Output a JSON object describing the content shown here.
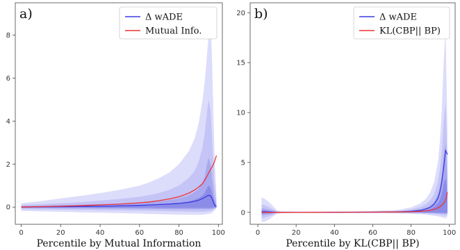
{
  "chart_data": [
    {
      "type": "area",
      "panel_label": "a)",
      "xlabel": "Percentile by Mutual Information",
      "ylabel": "",
      "xlim": [
        -3,
        102
      ],
      "ylim": [
        -0.8,
        9.5
      ],
      "xticks": [
        "0",
        "20",
        "40",
        "60",
        "80",
        "100"
      ],
      "yticks": [
        "0",
        "2",
        "4",
        "6",
        "8"
      ],
      "legend_position": "top-right",
      "grid": false,
      "colors": {
        "mean_line": "#3a3ae0",
        "info_line": "#ee3333",
        "band_outer": "#dcdcfb",
        "band_mid": "#c4c4f6",
        "band_inner": "#a9a9f0",
        "band_core": "#8c8ce8"
      },
      "x": [
        0,
        10,
        20,
        30,
        40,
        50,
        60,
        65,
        70,
        75,
        80,
        85,
        88,
        90,
        92,
        93,
        94,
        95,
        96,
        97,
        98,
        99
      ],
      "series": [
        {
          "name": "Δ wADE",
          "kind": "line",
          "values": [
            0.0,
            0.01,
            0.02,
            0.03,
            0.04,
            0.06,
            0.08,
            0.1,
            0.12,
            0.14,
            0.17,
            0.22,
            0.27,
            0.32,
            0.4,
            0.45,
            0.5,
            0.55,
            0.52,
            0.35,
            0.1,
            0.02
          ]
        },
        {
          "name": "Mutual Info.",
          "kind": "line",
          "values": [
            0.0,
            0.02,
            0.04,
            0.07,
            0.1,
            0.14,
            0.2,
            0.24,
            0.3,
            0.38,
            0.48,
            0.65,
            0.8,
            0.93,
            1.1,
            1.25,
            1.4,
            1.58,
            1.75,
            1.9,
            2.1,
            2.4
          ]
        },
        {
          "name": "band-outer",
          "kind": "band",
          "upper": [
            0.18,
            0.28,
            0.4,
            0.52,
            0.65,
            0.8,
            1.0,
            1.15,
            1.35,
            1.6,
            2.0,
            2.6,
            3.2,
            3.9,
            5.0,
            5.8,
            6.8,
            8.0,
            9.3,
            6.0,
            2.5,
            0.5
          ],
          "lower": [
            -0.18,
            -0.2,
            -0.22,
            -0.24,
            -0.26,
            -0.28,
            -0.3,
            -0.32,
            -0.33,
            -0.34,
            -0.35,
            -0.36,
            -0.36,
            -0.36,
            -0.35,
            -0.34,
            -0.33,
            -0.32,
            -0.3,
            -0.25,
            -0.15,
            -0.05
          ]
        },
        {
          "name": "band-mid",
          "kind": "band",
          "upper": [
            0.1,
            0.14,
            0.18,
            0.23,
            0.3,
            0.38,
            0.48,
            0.56,
            0.66,
            0.8,
            1.0,
            1.35,
            1.7,
            2.1,
            2.8,
            3.4,
            4.2,
            5.0,
            4.5,
            2.8,
            1.2,
            0.3
          ],
          "lower": [
            -0.1,
            -0.11,
            -0.12,
            -0.13,
            -0.14,
            -0.15,
            -0.16,
            -0.17,
            -0.18,
            -0.19,
            -0.2,
            -0.21,
            -0.22,
            -0.22,
            -0.22,
            -0.22,
            -0.21,
            -0.2,
            -0.18,
            -0.15,
            -0.1,
            -0.03
          ]
        },
        {
          "name": "band-inner",
          "kind": "band",
          "upper": [
            0.05,
            0.07,
            0.09,
            0.11,
            0.14,
            0.17,
            0.21,
            0.24,
            0.28,
            0.33,
            0.4,
            0.55,
            0.7,
            0.85,
            1.15,
            1.4,
            1.9,
            2.3,
            2.0,
            1.2,
            0.5,
            0.12
          ],
          "lower": [
            -0.05,
            -0.05,
            -0.06,
            -0.06,
            -0.07,
            -0.07,
            -0.08,
            -0.08,
            -0.09,
            -0.09,
            -0.1,
            -0.1,
            -0.1,
            -0.1,
            -0.1,
            -0.1,
            -0.1,
            -0.1,
            -0.09,
            -0.08,
            -0.05,
            -0.02
          ]
        },
        {
          "name": "band-core",
          "kind": "band",
          "upper": [
            0.02,
            0.03,
            0.04,
            0.05,
            0.06,
            0.08,
            0.1,
            0.12,
            0.14,
            0.17,
            0.2,
            0.27,
            0.35,
            0.42,
            0.55,
            0.65,
            0.85,
            1.0,
            0.9,
            0.6,
            0.25,
            0.06
          ],
          "lower": [
            -0.02,
            -0.02,
            -0.02,
            -0.02,
            -0.03,
            -0.03,
            -0.03,
            -0.03,
            -0.04,
            -0.04,
            -0.04,
            -0.04,
            -0.04,
            -0.04,
            -0.04,
            -0.04,
            -0.04,
            -0.04,
            -0.04,
            -0.03,
            -0.02,
            -0.01
          ]
        }
      ]
    },
    {
      "type": "area",
      "panel_label": "b)",
      "xlabel": "Percentile by KL(CBP|| BP)",
      "ylabel": "",
      "xlim": [
        -4,
        103
      ],
      "ylim": [
        -1.2,
        21
      ],
      "xticks": [
        "0",
        "20",
        "40",
        "60",
        "80",
        "100"
      ],
      "yticks": [
        "0",
        "5",
        "10",
        "15",
        "20"
      ],
      "legend_position": "top-right",
      "grid": false,
      "colors": {
        "mean_line": "#3a3ae0",
        "info_line": "#ee3333",
        "band_outer": "#dcdcfb",
        "band_mid": "#c4c4f6",
        "band_inner": "#a9a9f0",
        "band_core": "#8c8ce8"
      },
      "x": [
        2,
        4,
        6,
        8,
        10,
        12,
        20,
        30,
        40,
        50,
        60,
        70,
        75,
        80,
        85,
        88,
        90,
        92,
        94,
        95,
        96,
        97,
        98,
        99
      ],
      "series": [
        {
          "name": "Δ wADE",
          "kind": "line",
          "values": [
            0.05,
            0.05,
            0.03,
            0.02,
            0.0,
            0.0,
            0.0,
            0.0,
            0.0,
            0.01,
            0.02,
            0.04,
            0.06,
            0.1,
            0.2,
            0.35,
            0.5,
            0.8,
            1.4,
            2.0,
            3.0,
            4.5,
            6.2,
            5.8
          ]
        },
        {
          "name": "KL(CBP|| BP)",
          "kind": "line",
          "values": [
            0.0,
            0.0,
            0.0,
            0.0,
            0.0,
            0.0,
            0.0,
            0.0,
            0.01,
            0.01,
            0.02,
            0.03,
            0.04,
            0.06,
            0.1,
            0.15,
            0.2,
            0.3,
            0.45,
            0.55,
            0.7,
            0.9,
            1.2,
            2.0
          ]
        },
        {
          "name": "band-outer",
          "kind": "band",
          "upper": [
            1.5,
            1.3,
            1.0,
            0.6,
            0.2,
            0.1,
            0.08,
            0.08,
            0.1,
            0.12,
            0.15,
            0.2,
            0.3,
            0.5,
            0.9,
            1.4,
            2.0,
            3.0,
            5.0,
            7.0,
            10.0,
            15.0,
            18.5,
            8.0
          ],
          "lower": [
            -1.0,
            -0.9,
            -0.7,
            -0.4,
            -0.15,
            -0.1,
            -0.05,
            -0.05,
            -0.06,
            -0.07,
            -0.08,
            -0.1,
            -0.12,
            -0.15,
            -0.2,
            -0.25,
            -0.3,
            -0.35,
            -0.4,
            -0.45,
            -0.5,
            -0.55,
            -0.6,
            -0.4
          ]
        },
        {
          "name": "band-mid",
          "kind": "band",
          "upper": [
            0.8,
            0.7,
            0.5,
            0.3,
            0.1,
            0.06,
            0.05,
            0.05,
            0.06,
            0.07,
            0.09,
            0.12,
            0.18,
            0.3,
            0.55,
            0.85,
            1.2,
            1.8,
            3.0,
            4.2,
            6.0,
            9.0,
            11.0,
            5.0
          ],
          "lower": [
            -0.6,
            -0.5,
            -0.4,
            -0.25,
            -0.08,
            -0.05,
            -0.03,
            -0.03,
            -0.04,
            -0.04,
            -0.05,
            -0.06,
            -0.07,
            -0.08,
            -0.1,
            -0.12,
            -0.15,
            -0.18,
            -0.22,
            -0.25,
            -0.28,
            -0.3,
            -0.32,
            -0.2
          ]
        },
        {
          "name": "band-inner",
          "kind": "band",
          "upper": [
            0.4,
            0.35,
            0.25,
            0.15,
            0.05,
            0.03,
            0.03,
            0.03,
            0.04,
            0.04,
            0.05,
            0.07,
            0.1,
            0.17,
            0.3,
            0.48,
            0.7,
            1.05,
            1.8,
            2.5,
            3.6,
            5.5,
            7.0,
            3.2
          ],
          "lower": [
            -0.3,
            -0.25,
            -0.2,
            -0.12,
            -0.04,
            -0.03,
            -0.02,
            -0.02,
            -0.02,
            -0.02,
            -0.03,
            -0.03,
            -0.04,
            -0.04,
            -0.05,
            -0.06,
            -0.07,
            -0.08,
            -0.1,
            -0.11,
            -0.12,
            -0.13,
            -0.14,
            -0.1
          ]
        },
        {
          "name": "band-core",
          "kind": "band",
          "upper": [
            0.2,
            0.18,
            0.12,
            0.08,
            0.02,
            0.02,
            0.02,
            0.02,
            0.02,
            0.02,
            0.03,
            0.04,
            0.05,
            0.09,
            0.15,
            0.24,
            0.35,
            0.52,
            0.9,
            1.25,
            1.8,
            2.8,
            3.5,
            1.6
          ],
          "lower": [
            -0.15,
            -0.12,
            -0.1,
            -0.06,
            -0.02,
            -0.01,
            -0.01,
            -0.01,
            -0.01,
            -0.01,
            -0.01,
            -0.01,
            -0.02,
            -0.02,
            -0.02,
            -0.03,
            -0.03,
            -0.04,
            -0.05,
            -0.05,
            -0.06,
            -0.06,
            -0.07,
            -0.05
          ]
        }
      ]
    }
  ]
}
